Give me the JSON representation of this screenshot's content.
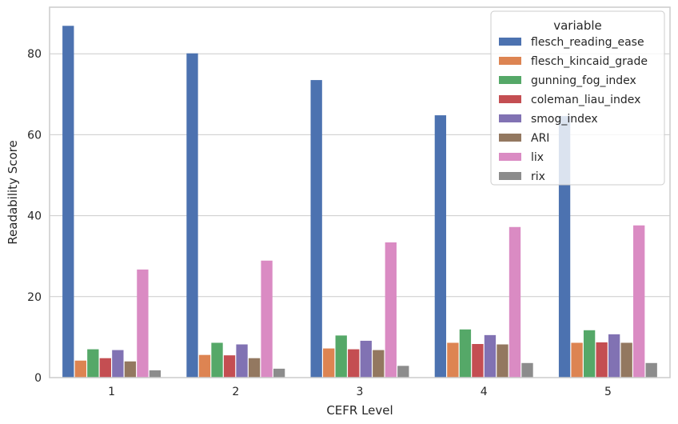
{
  "chart_data": {
    "type": "bar",
    "xlabel": "CEFR Level",
    "ylabel": "Readability Score",
    "categories": [
      "1",
      "2",
      "3",
      "4",
      "5"
    ],
    "ylim": [
      0,
      91.5
    ],
    "yticks": [
      0,
      20,
      40,
      60,
      80
    ],
    "grid": true,
    "legend": {
      "title": "variable",
      "placement": "top-right"
    },
    "series": [
      {
        "name": "flesch_reading_ease",
        "color": "#4c72b0",
        "values": [
          86.9,
          80.1,
          73.5,
          64.8,
          64.6
        ]
      },
      {
        "name": "flesch_kincaid_grade",
        "color": "#dd8452",
        "values": [
          4.2,
          5.6,
          7.2,
          8.6,
          8.6
        ]
      },
      {
        "name": "gunning_fog_index",
        "color": "#55a868",
        "values": [
          7.0,
          8.6,
          10.4,
          11.9,
          11.7
        ]
      },
      {
        "name": "coleman_liau_index",
        "color": "#c44e52",
        "values": [
          4.8,
          5.5,
          7.0,
          8.3,
          8.7
        ]
      },
      {
        "name": "smog_index",
        "color": "#8172b3",
        "values": [
          6.8,
          8.2,
          9.1,
          10.5,
          10.7
        ]
      },
      {
        "name": "ARI",
        "color": "#937860",
        "values": [
          4.0,
          4.8,
          6.8,
          8.2,
          8.6
        ]
      },
      {
        "name": "lix",
        "color": "#da8bc3",
        "values": [
          26.7,
          28.9,
          33.4,
          37.2,
          37.6
        ]
      },
      {
        "name": "rix",
        "color": "#8c8c8c",
        "values": [
          1.8,
          2.2,
          2.9,
          3.6,
          3.6
        ]
      }
    ]
  },
  "colors": {
    "grid": "#cccccc",
    "frame": "#cccccc",
    "legend_border": "#cccccc"
  }
}
